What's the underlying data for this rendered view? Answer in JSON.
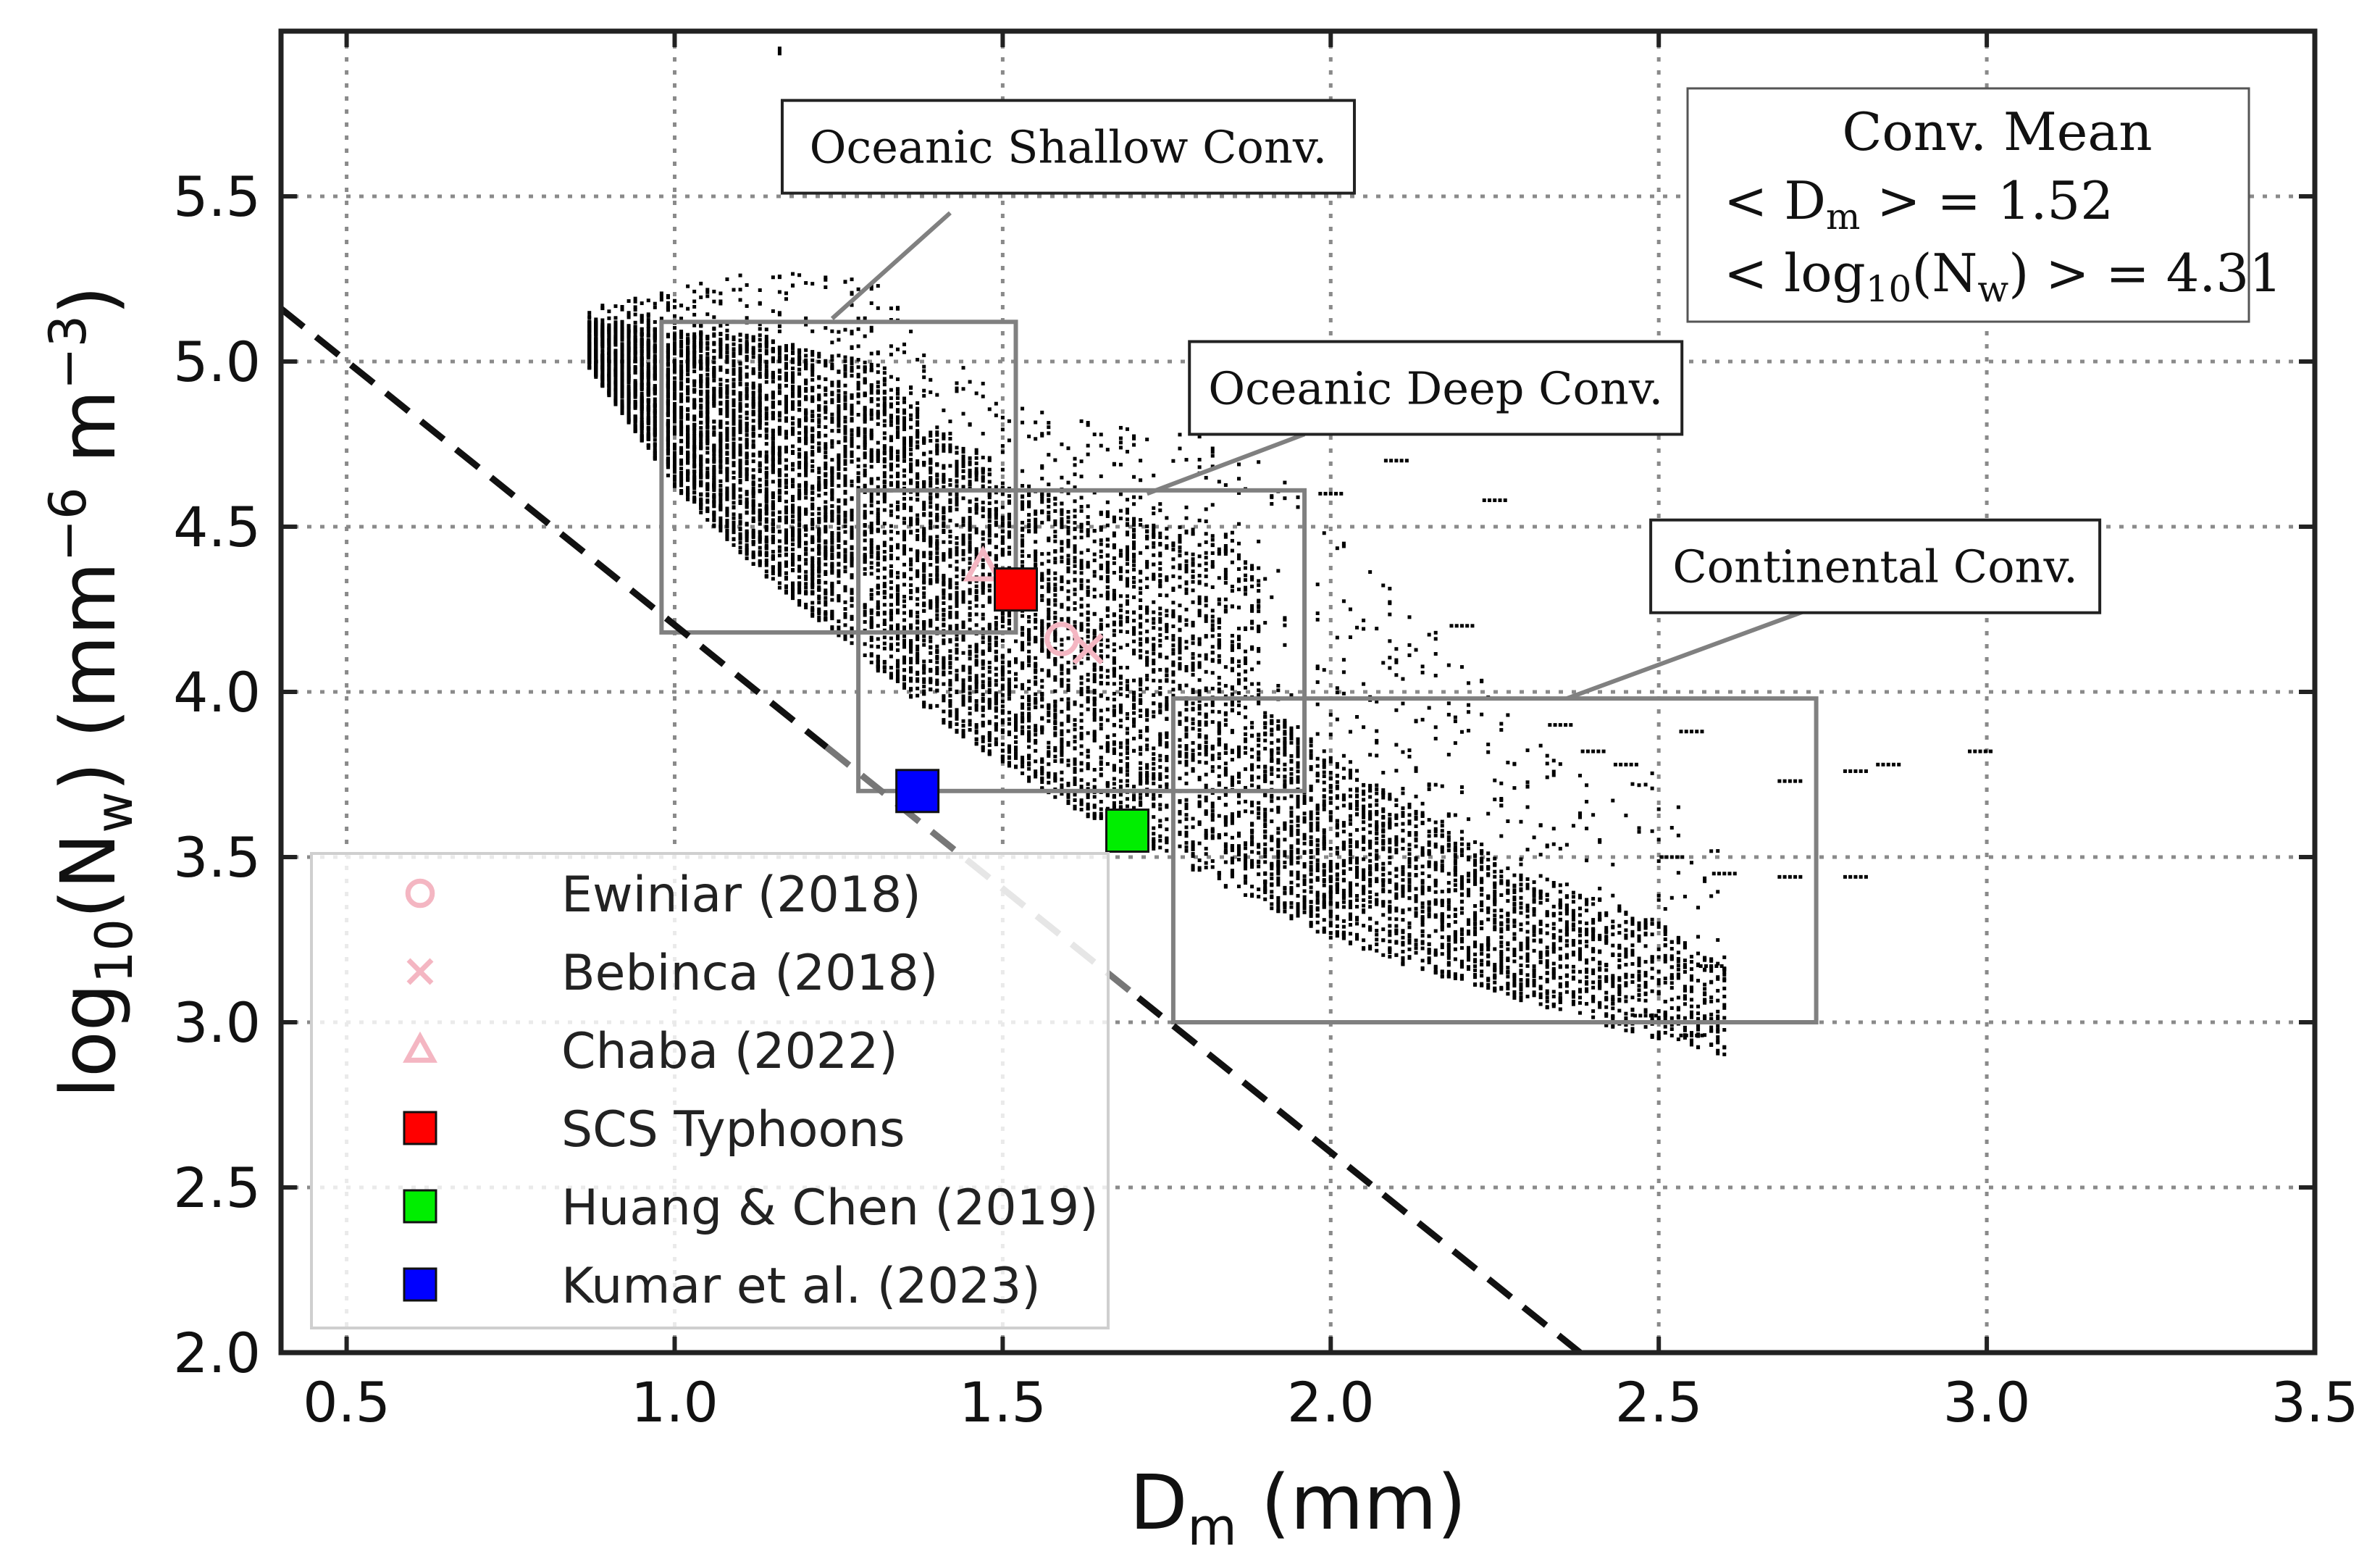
{
  "chart_data": {
    "type": "scatter",
    "title": "",
    "xlabel": {
      "base": "D",
      "sub": "m",
      "unit": "(mm)"
    },
    "ylabel": {
      "pre": "log",
      "sub1": "10",
      "mid": "(N",
      "sub2": "w",
      "post": ")",
      "unit_pre": "(mm",
      "exp1": "−6",
      "unit_mid": " m",
      "exp2": "−3",
      "unit_post": ")"
    },
    "xlim": [
      0.4,
      3.5
    ],
    "ylim": [
      2.0,
      6.0
    ],
    "xticks": [
      0.5,
      1.0,
      1.5,
      2.0,
      2.5,
      3.0,
      3.5
    ],
    "xtick_labels": [
      "0.5",
      "1.0",
      "1.5",
      "2.0",
      "2.5",
      "3.0",
      "3.5"
    ],
    "yticks": [
      2.0,
      2.5,
      3.0,
      3.5,
      4.0,
      4.5,
      5.0,
      5.5
    ],
    "ytick_labels": [
      "2.0",
      "2.5",
      "3.0",
      "3.5",
      "4.0",
      "4.5",
      "5.0",
      "5.5"
    ],
    "grid": true,
    "reference_line": {
      "points": [
        [
          0.4,
          5.16
        ],
        [
          2.38,
          2.0
        ]
      ],
      "style": "dashed"
    },
    "regions": [
      {
        "label": "Oceanic Shallow Conv.",
        "dm_range": [
          0.98,
          1.52
        ],
        "log_nw_range": [
          4.18,
          5.12
        ],
        "label_anchor": [
          1.6,
          5.65
        ]
      },
      {
        "label": "Oceanic Deep Conv.",
        "dm_range": [
          1.28,
          1.96
        ],
        "log_nw_range": [
          3.7,
          4.61
        ],
        "label_anchor": [
          2.16,
          4.92
        ]
      },
      {
        "label": "Continental Conv.",
        "dm_range": [
          1.76,
          2.74
        ],
        "log_nw_range": [
          3.0,
          3.98
        ],
        "label_anchor": [
          2.83,
          4.38
        ]
      }
    ],
    "mean_box": {
      "title": "Conv. Mean",
      "dm_label": "< D",
      "dm_sub": "m",
      "dm_value": "> = 1.52",
      "nw_label": "< log",
      "nw_sub1": "10",
      "nw_mid": "(N",
      "nw_sub2": "w",
      "nw_value": ") > = 4.31"
    },
    "series": [
      {
        "name": "Ewiniar (2018)",
        "marker": "circle",
        "color": "#f4b6c2",
        "x": [
          1.59
        ],
        "y": [
          4.16
        ]
      },
      {
        "name": "Bebinca  (2018)",
        "marker": "x",
        "color": "#f4b6c2",
        "x": [
          1.63
        ],
        "y": [
          4.13
        ]
      },
      {
        "name": "Chaba  (2022)",
        "marker": "triangle",
        "color": "#f4b6c2",
        "x": [
          1.47
        ],
        "y": [
          4.38
        ]
      },
      {
        "name": "SCS Typhoons",
        "marker": "square",
        "color": "#ff0000",
        "x": [
          1.52
        ],
        "y": [
          4.31
        ]
      },
      {
        "name": "Huang & Chen (2019)",
        "marker": "square",
        "color": "#00ee00",
        "x": [
          1.69
        ],
        "y": [
          3.58
        ]
      },
      {
        "name": "Kumar et al. (2023)",
        "marker": "square",
        "color": "#0000ff",
        "x": [
          1.37
        ],
        "y": [
          3.7
        ]
      }
    ],
    "scatter_cloud": {
      "color": "#000000",
      "description_ranges": [
        {
          "dm": 0.87,
          "y_low": 4.98,
          "y_high": 5.16
        },
        {
          "dm": 0.95,
          "y_low": 4.76,
          "y_high": 5.2
        },
        {
          "dm": 1.0,
          "y_low": 4.62,
          "y_high": 5.22
        },
        {
          "dm": 1.1,
          "y_low": 4.42,
          "y_high": 5.27
        },
        {
          "dm": 1.2,
          "y_low": 4.24,
          "y_high": 5.27
        },
        {
          "dm": 1.3,
          "y_low": 4.08,
          "y_high": 5.25
        },
        {
          "dm": 1.4,
          "y_low": 3.92,
          "y_high": 5.05
        },
        {
          "dm": 1.5,
          "y_low": 3.78,
          "y_high": 4.9
        },
        {
          "dm": 1.6,
          "y_low": 3.65,
          "y_high": 4.84
        },
        {
          "dm": 1.7,
          "y_low": 3.55,
          "y_high": 4.8
        },
        {
          "dm": 1.8,
          "y_low": 3.45,
          "y_high": 4.78
        },
        {
          "dm": 1.9,
          "y_low": 3.35,
          "y_high": 4.7
        },
        {
          "dm": 2.0,
          "y_low": 3.25,
          "y_high": 4.5
        },
        {
          "dm": 2.1,
          "y_low": 3.18,
          "y_high": 4.3
        },
        {
          "dm": 2.2,
          "y_low": 3.12,
          "y_high": 4.1
        },
        {
          "dm": 2.3,
          "y_low": 3.06,
          "y_high": 3.9
        },
        {
          "dm": 2.4,
          "y_low": 3.0,
          "y_high": 3.85
        },
        {
          "dm": 2.5,
          "y_low": 2.95,
          "y_high": 3.75
        },
        {
          "dm": 2.6,
          "y_low": 2.9,
          "y_high": 3.5
        }
      ]
    }
  }
}
